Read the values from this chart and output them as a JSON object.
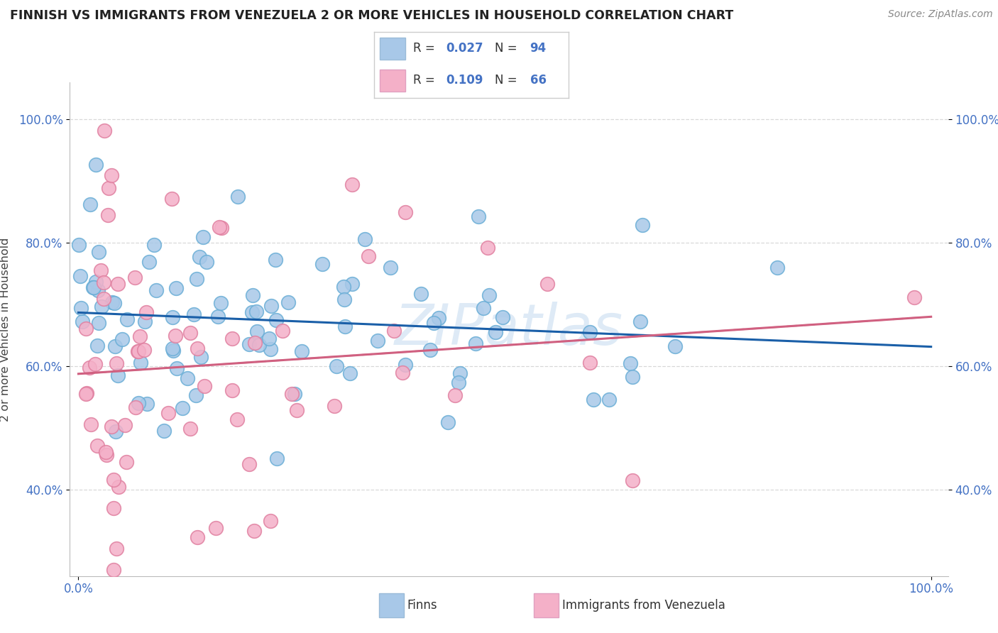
{
  "title": "FINNISH VS IMMIGRANTS FROM VENEZUELA 2 OR MORE VEHICLES IN HOUSEHOLD CORRELATION CHART",
  "source": "Source: ZipAtlas.com",
  "ylabel": "2 or more Vehicles in Household",
  "ytick_values": [
    0.4,
    0.6,
    0.8,
    1.0
  ],
  "ytick_labels": [
    "40.0%",
    "60.0%",
    "80.0%",
    "100.0%"
  ],
  "finns_color": "#a8c8e8",
  "finns_edge_color": "#6aaed6",
  "venezuela_color": "#f4b0c8",
  "venezuela_edge_color": "#e080a0",
  "finns_line_color": "#1a5fa8",
  "venezuela_line_color": "#d06080",
  "venezuela_dash_color": "#e8a0b8",
  "grid_color": "#d8d8d8",
  "background_color": "#ffffff",
  "watermark": "ZIPatlas",
  "watermark_color": "#c8ddf0",
  "xlim": [
    -0.01,
    1.02
  ],
  "ylim": [
    0.26,
    1.06
  ],
  "finns_R": 0.027,
  "finns_N": 94,
  "venezuela_R": 0.109,
  "venezuela_N": 66,
  "legend_finns_color": "#a8c8e8",
  "legend_venezuela_color": "#f4b0c8",
  "R_N_color": "#4472c4",
  "bottom_legend_finns": "Finns",
  "bottom_legend_venezuela": "Immigrants from Venezuela"
}
